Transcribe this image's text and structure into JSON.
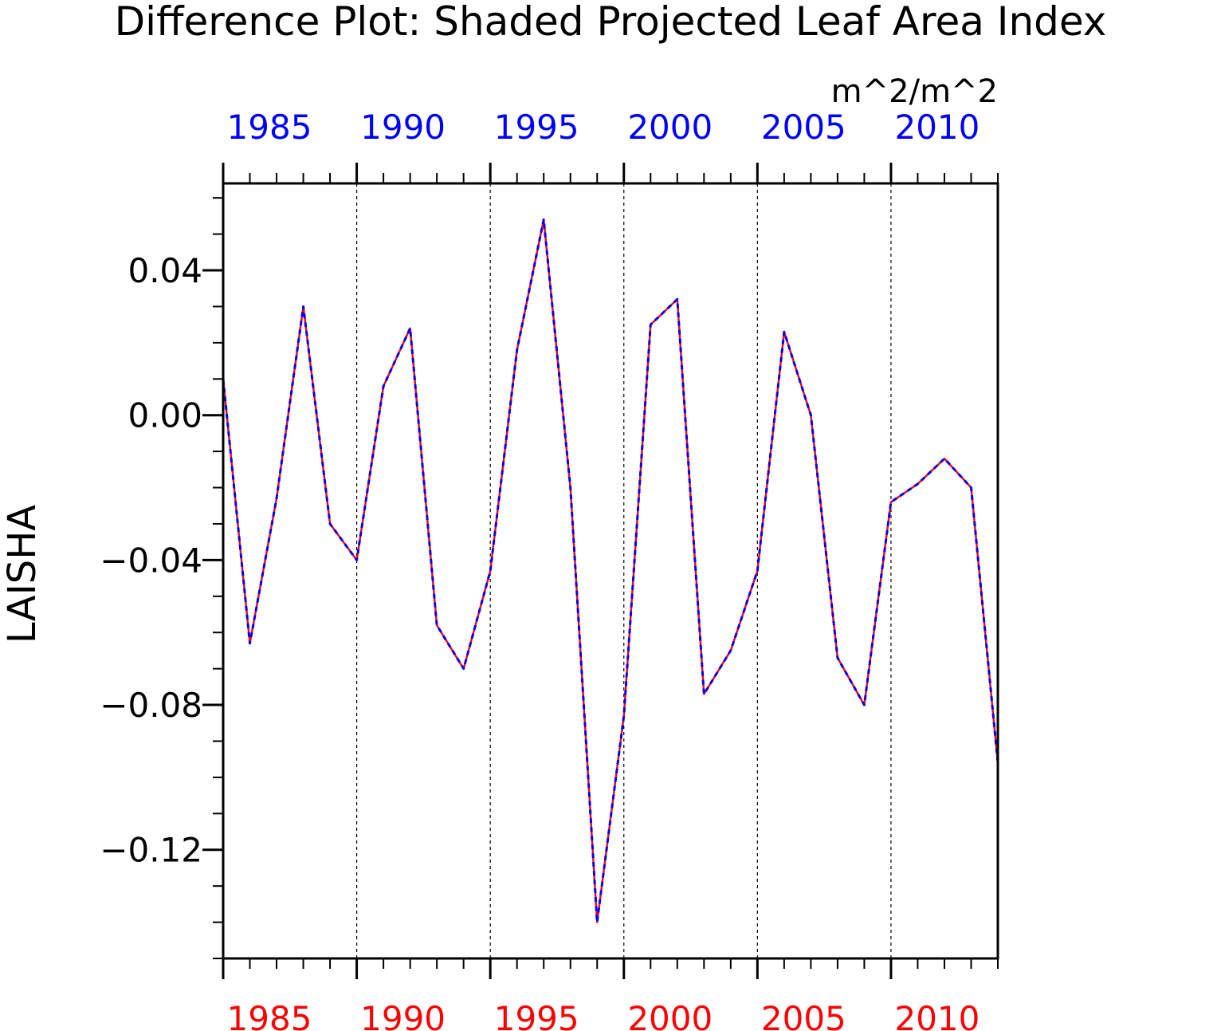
{
  "chart_data": {
    "type": "line",
    "title": "Difference Plot: Shaded Projected Leaf Area Index",
    "units": "m^2/m^2",
    "ylabel": "LAISHA",
    "xlabel": "",
    "xlim": [
      1985,
      2014
    ],
    "ylim": [
      -0.15,
      0.064
    ],
    "x_ticks": [
      1985,
      1990,
      1995,
      2000,
      2005,
      2010
    ],
    "x_tick_labels": [
      "1985",
      "1990",
      "1995",
      "2000",
      "2005",
      "2010"
    ],
    "y_ticks": [
      0.04,
      0.0,
      -0.04,
      -0.08,
      -0.12
    ],
    "y_tick_labels": [
      "0.04",
      "0.00",
      "−0.04",
      "−0.08",
      "−0.12"
    ],
    "grid": "vertical dashed at major x ticks",
    "colors": {
      "top_axis_labels": "#0000ff",
      "bottom_axis_labels": "#ff0000",
      "series_solid": "#ff0000",
      "series_dashed": "#0000ff",
      "axis": "#000000"
    },
    "x": [
      1985,
      1986,
      1987,
      1988,
      1989,
      1990,
      1991,
      1992,
      1993,
      1994,
      1995,
      1996,
      1997,
      1998,
      1999,
      2000,
      2001,
      2002,
      2003,
      2004,
      2005,
      2006,
      2007,
      2008,
      2009,
      2010,
      2011,
      2012,
      2013,
      2014
    ],
    "series": [
      {
        "style": "solid",
        "color": "#ff0000",
        "values": [
          0.01,
          -0.063,
          -0.023,
          0.03,
          -0.03,
          -0.04,
          0.008,
          0.024,
          -0.058,
          -0.07,
          -0.043,
          0.018,
          0.054,
          -0.02,
          -0.14,
          -0.083,
          0.025,
          0.032,
          -0.077,
          -0.065,
          -0.043,
          0.023,
          0.0,
          -0.067,
          -0.08,
          -0.024,
          -0.019,
          -0.012,
          -0.02,
          -0.096
        ]
      },
      {
        "style": "dashed",
        "color": "#0000ff",
        "values": [
          0.01,
          -0.063,
          -0.023,
          0.03,
          -0.03,
          -0.04,
          0.008,
          0.024,
          -0.058,
          -0.07,
          -0.043,
          0.018,
          0.054,
          -0.02,
          -0.14,
          -0.083,
          0.025,
          0.032,
          -0.077,
          -0.065,
          -0.043,
          0.023,
          0.0,
          -0.067,
          -0.08,
          -0.024,
          -0.019,
          -0.012,
          -0.02,
          -0.096
        ]
      }
    ]
  }
}
